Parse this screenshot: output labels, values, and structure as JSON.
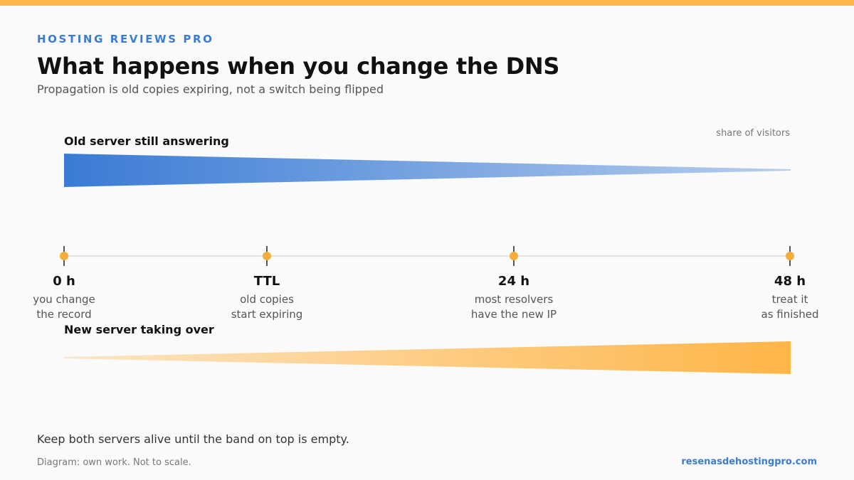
{
  "colors": {
    "accent_top": "#ffb547",
    "brand": "#3a7bd5",
    "old_band": "#3a7bd5",
    "new_band": "#ffb547",
    "timeline": "#e3e3e3",
    "marker": "#f5ad3c"
  },
  "header": {
    "brand": "HOSTING REVIEWS PRO",
    "title": "What happens when you change the DNS",
    "subtitle": "Propagation is old copies expiring, not a switch being flipped"
  },
  "bands": {
    "old_label": "Old server still answering",
    "new_label": "New server taking over",
    "axis_note": "share of visitors"
  },
  "timeline": {
    "markers": [
      {
        "value": "0 h",
        "line1": "you change",
        "line2": "the record"
      },
      {
        "value": "TTL",
        "line1": "old copies",
        "line2": "start expiring"
      },
      {
        "value": "24 h",
        "line1": "most resolvers",
        "line2": "have the new IP"
      },
      {
        "value": "48 h",
        "line1": "treat it",
        "line2": "as finished"
      }
    ]
  },
  "footer": {
    "note": "Keep both servers alive until the band on top is empty.",
    "credit": "Diagram: own work. Not to scale.",
    "site": "resenasdehostingpro.com"
  }
}
